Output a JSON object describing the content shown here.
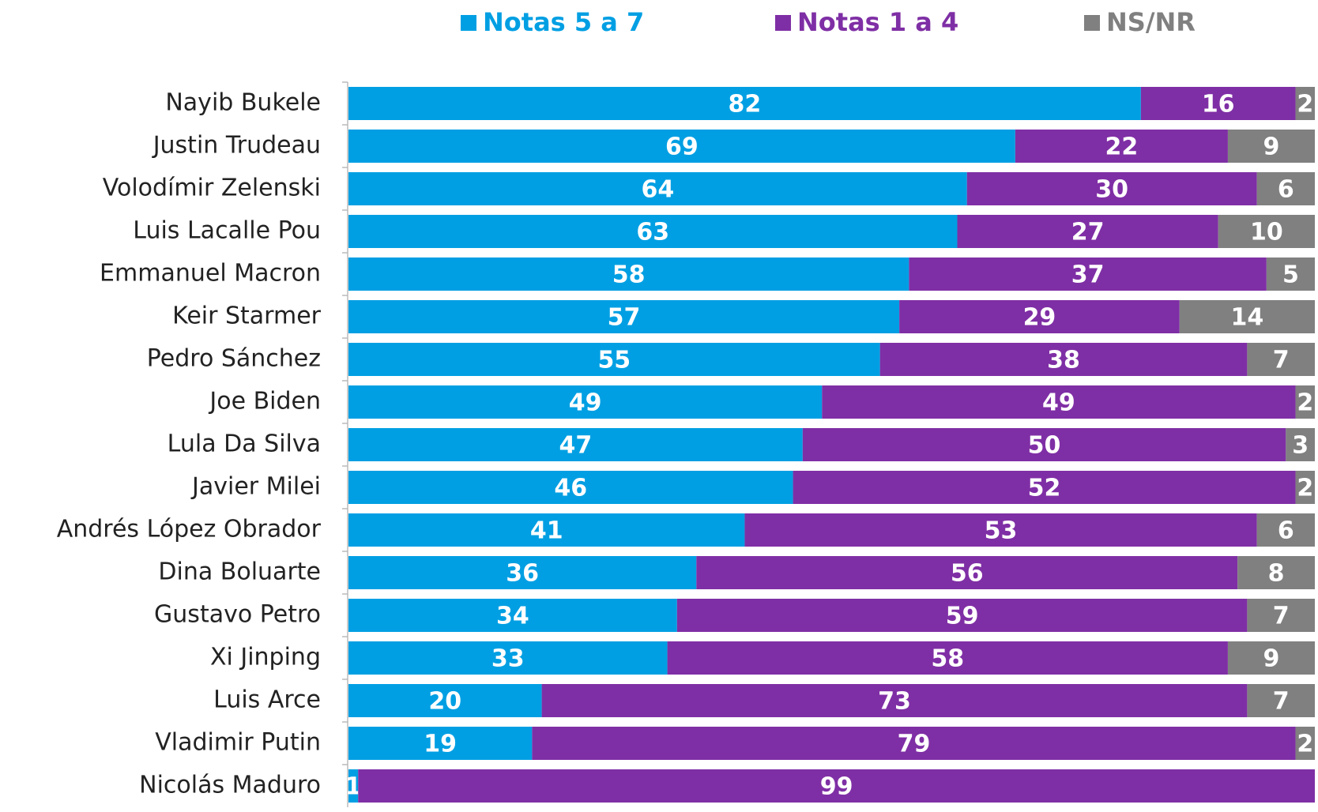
{
  "chart_data": {
    "type": "stacked-bar-horizontal",
    "categories": [
      "Nayib Bukele",
      "Justin Trudeau",
      "Volodímir Zelenski",
      "Luis Lacalle Pou",
      "Emmanuel Macron",
      "Keir Starmer",
      "Pedro Sánchez",
      "Joe Biden",
      "Lula Da Silva",
      "Javier Milei",
      "Andrés López Obrador",
      "Dina Boluarte",
      "Gustavo Petro",
      "Xi Jinping",
      "Luis Arce",
      "Vladimir Putin",
      "Nicolás Maduro"
    ],
    "series": [
      {
        "name": "Notas 5 a 7",
        "color": "#009fe3",
        "values": [
          82,
          69,
          64,
          63,
          58,
          57,
          55,
          49,
          47,
          46,
          41,
          36,
          34,
          33,
          20,
          19,
          1
        ]
      },
      {
        "name": "Notas 1 a 4",
        "color": "#7f2fa5",
        "values": [
          16,
          22,
          30,
          27,
          37,
          29,
          38,
          49,
          50,
          52,
          53,
          56,
          59,
          58,
          73,
          79,
          99
        ]
      },
      {
        "name": "NS/NR",
        "color": "#808080",
        "values": [
          2,
          9,
          6,
          10,
          5,
          14,
          7,
          2,
          3,
          2,
          6,
          8,
          7,
          9,
          7,
          2,
          null
        ]
      }
    ],
    "xlim": [
      0,
      100
    ],
    "legend": "top"
  }
}
